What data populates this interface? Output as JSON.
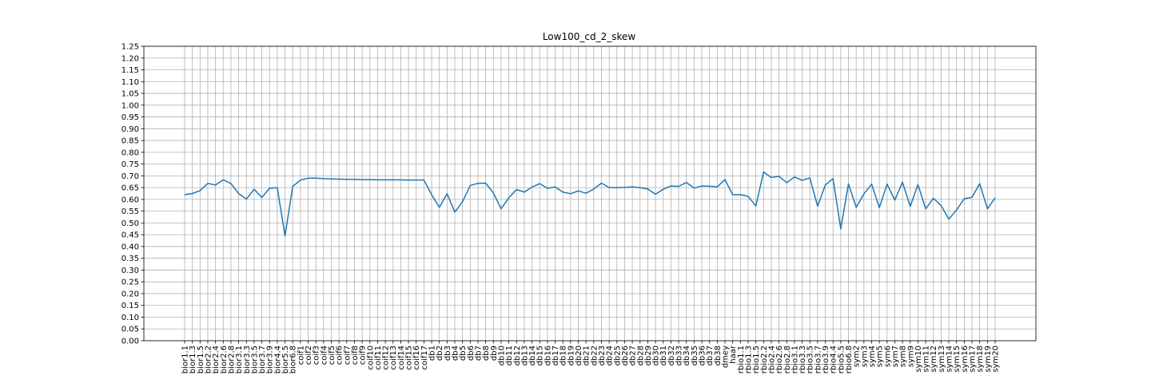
{
  "chart_data": {
    "type": "line",
    "title": "Low100_cd_2_skew",
    "xlabel": "",
    "ylabel": "",
    "ylim": [
      0,
      1.25
    ],
    "yticks": [
      "0.00",
      "0.05",
      "0.10",
      "0.15",
      "0.20",
      "0.25",
      "0.30",
      "0.35",
      "0.40",
      "0.45",
      "0.50",
      "0.55",
      "0.60",
      "0.65",
      "0.70",
      "0.75",
      "0.80",
      "0.85",
      "0.90",
      "0.95",
      "1.00",
      "1.05",
      "1.10",
      "1.15",
      "1.20",
      "1.25"
    ],
    "grid": true,
    "line_color": "#1f77b4",
    "categories": [
      "bior1.1",
      "bior1.3",
      "bior1.5",
      "bior2.2",
      "bior2.4",
      "bior2.6",
      "bior2.8",
      "bior3.1",
      "bior3.3",
      "bior3.5",
      "bior3.7",
      "bior3.9",
      "bior4.4",
      "bior5.5",
      "bior6.8",
      "coif1",
      "coif2",
      "coif3",
      "coif4",
      "coif5",
      "coif6",
      "coif7",
      "coif8",
      "coif9",
      "coif10",
      "coif11",
      "coif12",
      "coif13",
      "coif14",
      "coif15",
      "coif16",
      "coif17",
      "db1",
      "db2",
      "db3",
      "db4",
      "db5",
      "db6",
      "db7",
      "db8",
      "db9",
      "db10",
      "db11",
      "db12",
      "db13",
      "db14",
      "db15",
      "db16",
      "db17",
      "db18",
      "db19",
      "db20",
      "db21",
      "db22",
      "db23",
      "db24",
      "db25",
      "db26",
      "db27",
      "db28",
      "db29",
      "db30",
      "db31",
      "db32",
      "db33",
      "db34",
      "db35",
      "db36",
      "db37",
      "db38",
      "dmey",
      "haar",
      "rbio1.1",
      "rbio1.3",
      "rbio1.5",
      "rbio2.2",
      "rbio2.4",
      "rbio2.6",
      "rbio2.8",
      "rbio3.1",
      "rbio3.3",
      "rbio3.5",
      "rbio3.7",
      "rbio3.9",
      "rbio4.4",
      "rbio5.5",
      "rbio6.8",
      "sym2",
      "sym3",
      "sym4",
      "sym5",
      "sym6",
      "sym7",
      "sym8",
      "sym9",
      "sym10",
      "sym11",
      "sym12",
      "sym13",
      "sym14",
      "sym15",
      "sym16",
      "sym17",
      "sym18",
      "sym19",
      "sym20"
    ],
    "series": [
      {
        "values": [
          0.62,
          0.625,
          0.637,
          0.668,
          0.661,
          0.683,
          0.667,
          0.625,
          0.601,
          0.643,
          0.608,
          0.647,
          0.65,
          0.445,
          0.655,
          0.682,
          0.69,
          0.69,
          0.688,
          0.687,
          0.686,
          0.685,
          0.685,
          0.684,
          0.684,
          0.683,
          0.683,
          0.683,
          0.683,
          0.682,
          0.682,
          0.682,
          0.62,
          0.566,
          0.624,
          0.546,
          0.59,
          0.659,
          0.668,
          0.669,
          0.627,
          0.56,
          0.607,
          0.642,
          0.631,
          0.652,
          0.667,
          0.647,
          0.653,
          0.631,
          0.624,
          0.636,
          0.626,
          0.644,
          0.669,
          0.65,
          0.65,
          0.651,
          0.653,
          0.65,
          0.644,
          0.622,
          0.643,
          0.657,
          0.655,
          0.672,
          0.648,
          0.657,
          0.656,
          0.653,
          0.684,
          0.62,
          0.62,
          0.613,
          0.572,
          0.716,
          0.693,
          0.698,
          0.671,
          0.695,
          0.681,
          0.691,
          0.571,
          0.661,
          0.688,
          0.475,
          0.666,
          0.566,
          0.623,
          0.665,
          0.565,
          0.665,
          0.597,
          0.673,
          0.57,
          0.663,
          0.56,
          0.605,
          0.574,
          0.516,
          0.555,
          0.603,
          0.609,
          0.667,
          0.56,
          0.607
        ]
      }
    ]
  }
}
